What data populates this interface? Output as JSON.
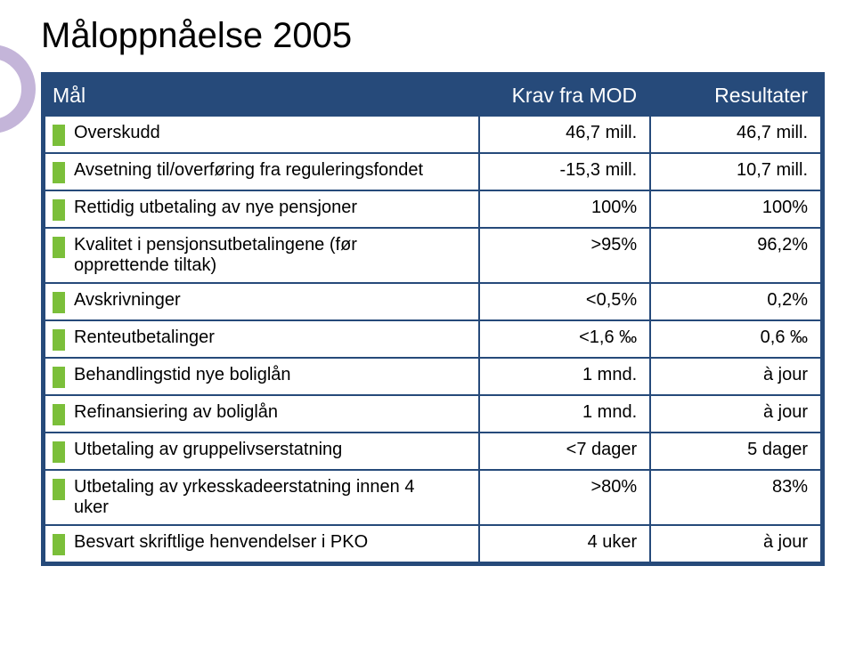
{
  "title": "Måloppnåelse 2005",
  "colors": {
    "header_bg": "#264a7a",
    "header_text": "#ffffff",
    "border": "#264a7a",
    "marker": "#7bbf3a",
    "deco_ring": "#c4b5d9",
    "body_bg": "#ffffff",
    "text": "#000000"
  },
  "table": {
    "columns": [
      "Mål",
      "Krav fra MOD",
      "Resultater"
    ],
    "rows": [
      {
        "label": "Overskudd",
        "krav": "46,7 mill.",
        "resultat": "46,7 mill."
      },
      {
        "label": "Avsetning til/overføring fra reguleringsfondet",
        "krav": "-15,3 mill.",
        "resultat": "10,7 mill."
      },
      {
        "label": "Rettidig utbetaling av nye pensjoner",
        "krav": "100%",
        "resultat": "100%"
      },
      {
        "label": "Kvalitet i pensjonsutbetalingene (før opprettende tiltak)",
        "krav": ">95%",
        "resultat": "96,2%"
      },
      {
        "label": "Avskrivninger",
        "krav": "<0,5%",
        "resultat": "0,2%"
      },
      {
        "label": "Renteutbetalinger",
        "krav": "<1,6 ‰",
        "resultat": "0,6 ‰"
      },
      {
        "label": "Behandlingstid nye boliglån",
        "krav": "1 mnd.",
        "resultat": "à jour"
      },
      {
        "label": "Refinansiering av boliglån",
        "krav": "1 mnd.",
        "resultat": "à jour"
      },
      {
        "label": "Utbetaling av gruppelivserstatning",
        "krav": "<7 dager",
        "resultat": "5 dager"
      },
      {
        "label": "Utbetaling av yrkesskadeerstatning innen 4 uker",
        "krav": ">80%",
        "resultat": "83%"
      },
      {
        "label": "Besvart skriftlige henvendelser i PKO",
        "krav": "4 uker",
        "resultat": "à jour"
      }
    ]
  }
}
